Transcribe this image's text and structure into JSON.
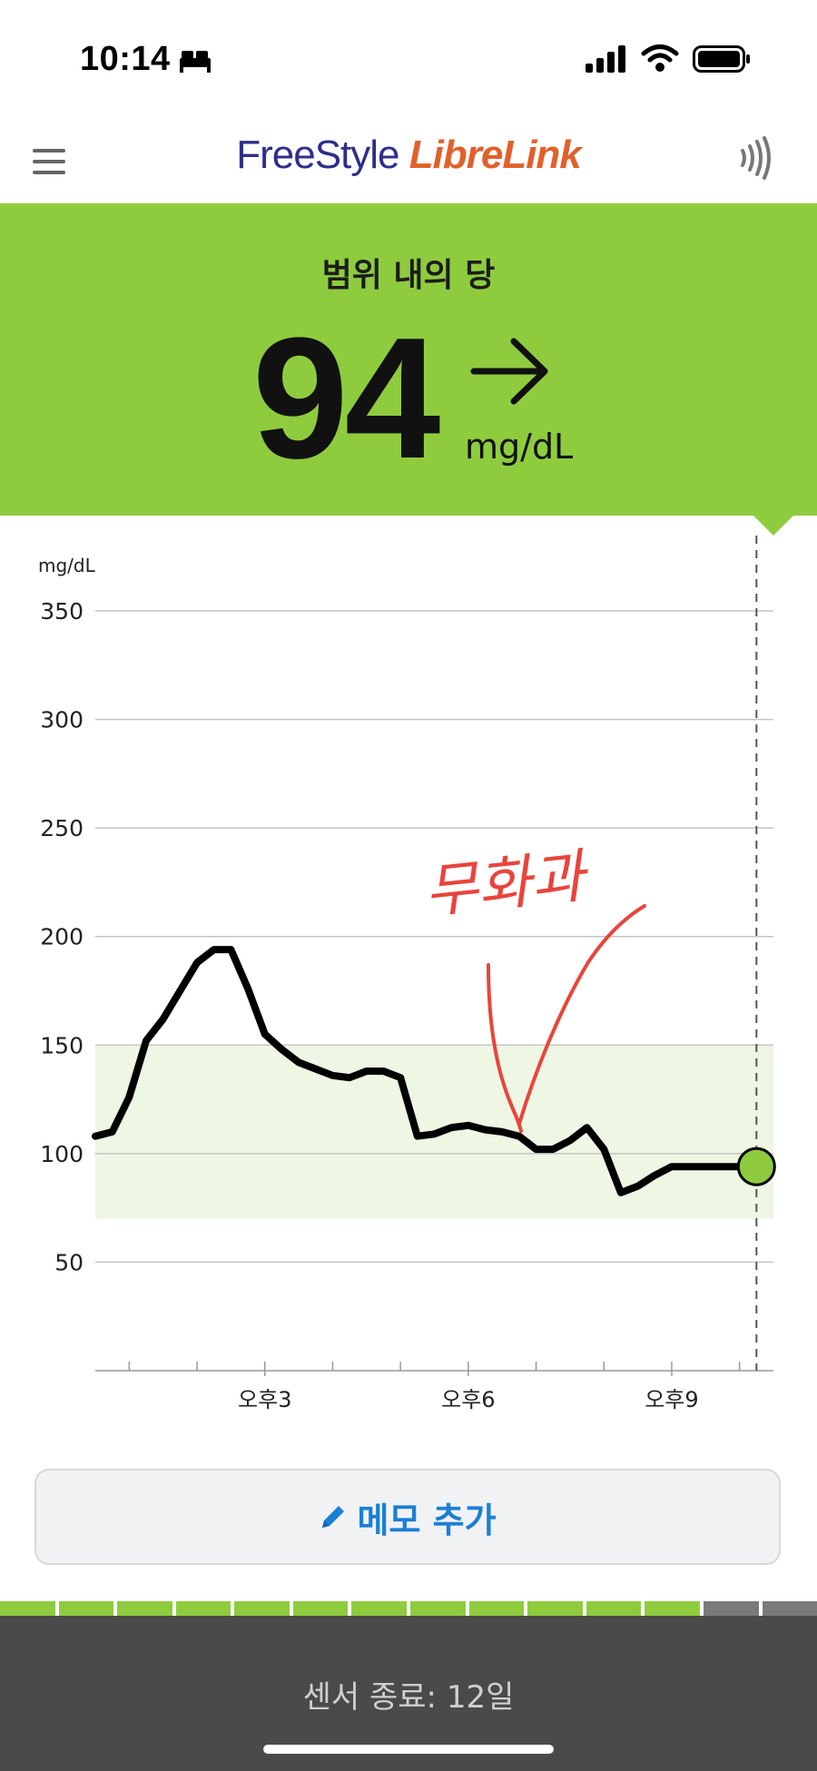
{
  "status_bar": {
    "time": "10:14",
    "icons": [
      "bed-icon",
      "signal-icon",
      "wifi-icon",
      "battery-icon"
    ]
  },
  "header": {
    "brand_part1": "FreeStyle",
    "brand_part2": "LibreLink",
    "menu_icon": "menu-icon",
    "nfc_icon": "nfc-scan-icon"
  },
  "banner": {
    "title": "범위 내의 당",
    "value": "94",
    "unit": "mg/dL",
    "trend": "right-arrow",
    "color": "#8ecc3e"
  },
  "chart_data": {
    "type": "line",
    "ylabel": "mg/dL",
    "ylim": [
      0,
      350
    ],
    "y_ticks": [
      350,
      300,
      250,
      200,
      150,
      100,
      50
    ],
    "x_ticks": [
      "오후3",
      "오후6",
      "오후9"
    ],
    "x_hours": [
      12.5,
      22.5
    ],
    "target_range": [
      70,
      150
    ],
    "grid": true,
    "series": [
      {
        "x": [
          12.5,
          12.75,
          13.0,
          13.25,
          13.5,
          13.75,
          14.0,
          14.25,
          14.5,
          14.75,
          15.0,
          15.25,
          15.5,
          15.75,
          16.0,
          16.25,
          16.5,
          16.75,
          17.0,
          17.25,
          17.5,
          17.75,
          18.0,
          18.25,
          18.5,
          18.75,
          19.0,
          19.25,
          19.5,
          19.75,
          20.0,
          20.25,
          20.5,
          20.75,
          21.0,
          21.25,
          21.5,
          21.75,
          22.0,
          22.25
        ],
        "y": [
          108,
          110,
          126,
          152,
          162,
          175,
          188,
          194,
          194,
          176,
          155,
          148,
          142,
          139,
          136,
          135,
          138,
          138,
          135,
          108,
          109,
          112,
          113,
          111,
          110,
          108,
          102,
          102,
          106,
          112,
          102,
          82,
          85,
          90,
          94,
          94,
          94,
          94,
          94,
          94
        ]
      }
    ],
    "current_point": {
      "x": 22.25,
      "y": 94
    },
    "annotation": "무화과"
  },
  "memo_button": {
    "label": "메모 추가"
  },
  "sensor": {
    "text": "센서 종료: 12일",
    "segments_total": 14,
    "segments_used": 12,
    "used_color": "#8ecc3e",
    "remaining_color": "#7a7a7a"
  }
}
